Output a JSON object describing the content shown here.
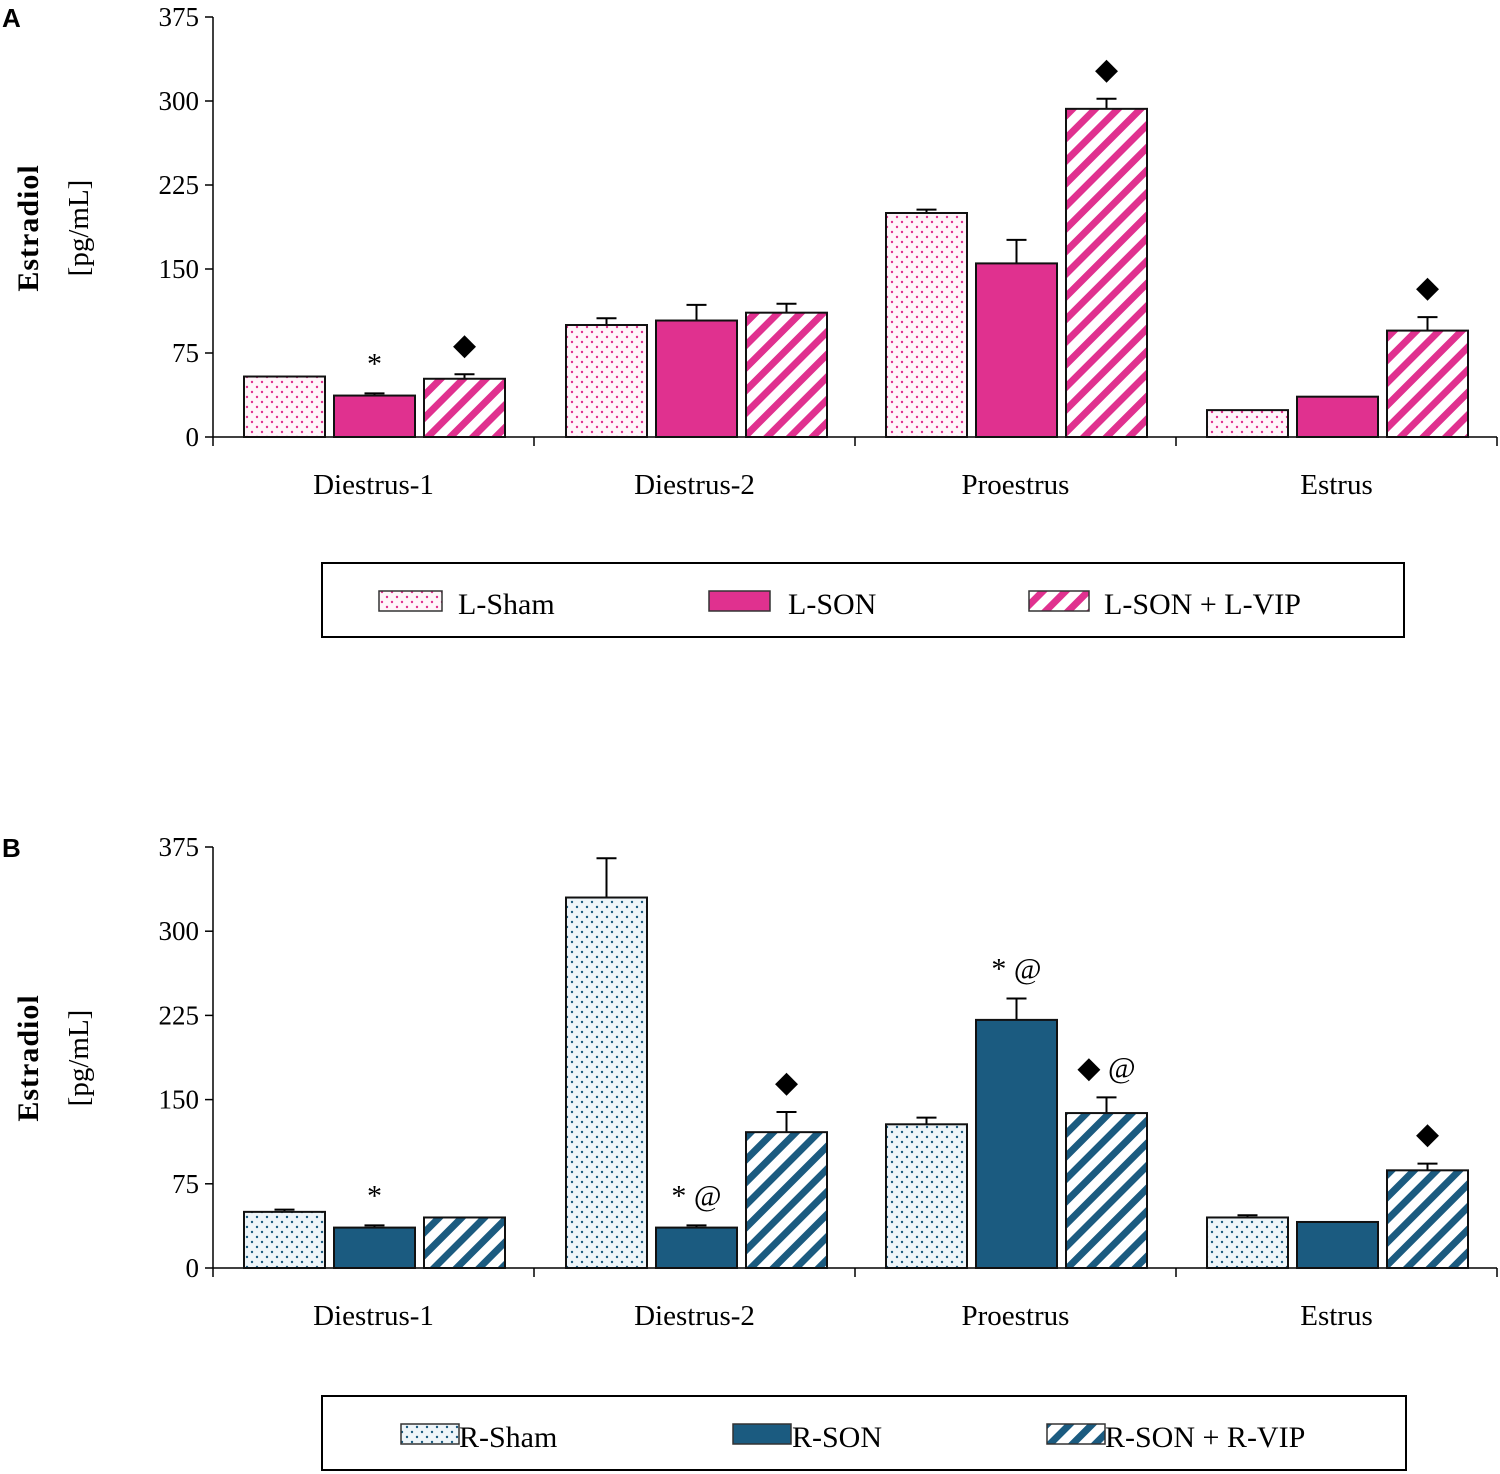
{
  "chart_data": [
    {
      "type": "bar",
      "panel_label": "A",
      "ylabel": "Estradiol",
      "ylabel_unit": "[pg/mL]",
      "ylim": [
        0,
        375
      ],
      "yticks": [
        "0",
        "75",
        "150",
        "225",
        "300",
        "375"
      ],
      "categories": [
        "Diestrus-1",
        "Diestrus-2",
        "Proestrus",
        "Estrus"
      ],
      "legend_position": "bottom",
      "series": [
        {
          "name": "L-Sham",
          "pattern": "dots",
          "color": "#e0318f",
          "fill": "#fdf2f8",
          "values": [
            54,
            100,
            200,
            24
          ],
          "errors": [
            0,
            6,
            3,
            0
          ],
          "annotations": [
            "",
            "",
            "",
            ""
          ]
        },
        {
          "name": "L-SON",
          "pattern": "solid",
          "color": "#e0318f",
          "fill": "#e0318f",
          "values": [
            37,
            104,
            155,
            36
          ],
          "errors": [
            2,
            14,
            21,
            0
          ],
          "annotations": [
            "*",
            "",
            "",
            ""
          ]
        },
        {
          "name": "L-SON + L-VIP",
          "pattern": "stripes",
          "color": "#e0318f",
          "fill": "#ffffff",
          "values": [
            52,
            111,
            293,
            95
          ],
          "errors": [
            4,
            8,
            9,
            12
          ],
          "annotations": [
            "◆",
            "",
            "◆",
            "◆"
          ]
        }
      ]
    },
    {
      "type": "bar",
      "panel_label": "B",
      "ylabel": "Estradiol",
      "ylabel_unit": "[pg/mL]",
      "ylim": [
        0,
        375
      ],
      "yticks": [
        "0",
        "75",
        "150",
        "225",
        "300",
        "375"
      ],
      "categories": [
        "Diestrus-1",
        "Diestrus-2",
        "Proestrus",
        "Estrus"
      ],
      "legend_position": "bottom",
      "series": [
        {
          "name": "R-Sham",
          "pattern": "dots",
          "color": "#1b5b80",
          "fill": "#eaf3f8",
          "values": [
            50,
            330,
            128,
            45
          ],
          "errors": [
            2,
            35,
            6,
            2
          ],
          "annotations": [
            "",
            "",
            "",
            ""
          ]
        },
        {
          "name": "R-SON",
          "pattern": "solid",
          "color": "#1b5b80",
          "fill": "#1b5b80",
          "values": [
            36,
            36,
            221,
            41
          ],
          "errors": [
            2,
            2,
            19,
            0
          ],
          "annotations": [
            "*",
            "* @",
            "* @",
            ""
          ]
        },
        {
          "name": "R-SON + R-VIP",
          "pattern": "stripes",
          "color": "#1b5b80",
          "fill": "#ffffff",
          "values": [
            45,
            121,
            138,
            87
          ],
          "errors": [
            0,
            18,
            14,
            6
          ],
          "annotations": [
            "",
            "◆",
            "◆ @",
            "◆"
          ]
        }
      ]
    }
  ]
}
